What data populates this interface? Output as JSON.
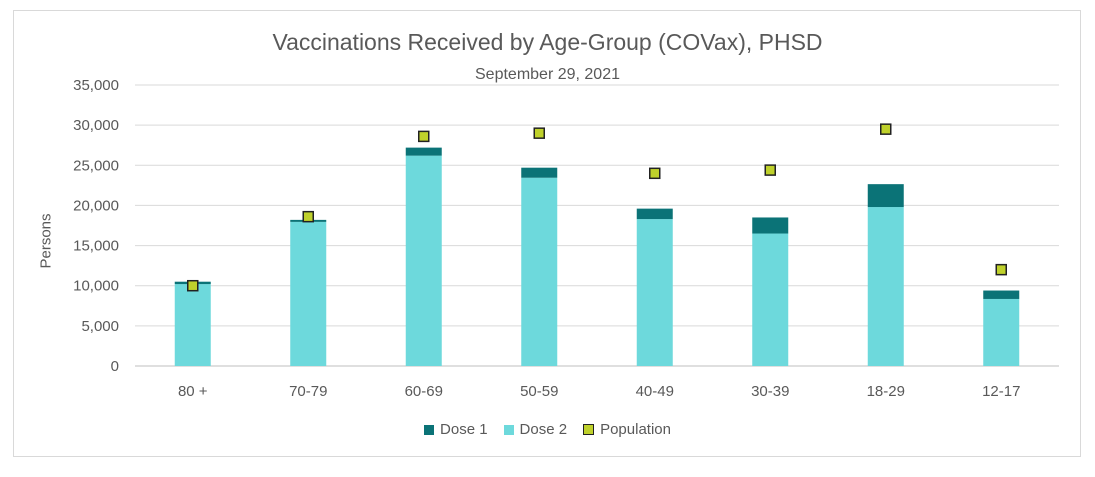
{
  "chart_data": {
    "type": "bar",
    "stacked": true,
    "title": "Vaccinations Received by Age-Group (COVax), PHSD",
    "subtitle": "September 29, 2021",
    "xlabel": "",
    "ylabel": "Persons",
    "ylim": [
      0,
      35000
    ],
    "yticks": [
      0,
      5000,
      10000,
      15000,
      20000,
      25000,
      30000,
      35000
    ],
    "ytick_labels": [
      "0",
      "5,000",
      "10,000",
      "15,000",
      "20,000",
      "25,000",
      "30,000",
      "35,000"
    ],
    "grid": true,
    "legend_position": "bottom",
    "categories": [
      "80 +",
      "70-79",
      "60-69",
      "50-59",
      "40-49",
      "30-39",
      "18-29",
      "12-17"
    ],
    "series": [
      {
        "name": "Dose 2",
        "kind": "bar",
        "color": "#6dd9dc",
        "values": [
          10200,
          17950,
          26200,
          23450,
          18300,
          16500,
          19800,
          8350
        ]
      },
      {
        "name": "Dose 1",
        "kind": "bar",
        "color": "#0b7377",
        "values": [
          300,
          250,
          1000,
          1250,
          1300,
          2000,
          2850,
          1050
        ]
      },
      {
        "name": "Population",
        "kind": "marker",
        "color": "#bfd12b",
        "values": [
          10000,
          18600,
          28600,
          29000,
          24000,
          24400,
          29500,
          12000
        ]
      }
    ],
    "legend": [
      "Dose 1",
      "Dose 2",
      "Population"
    ]
  }
}
